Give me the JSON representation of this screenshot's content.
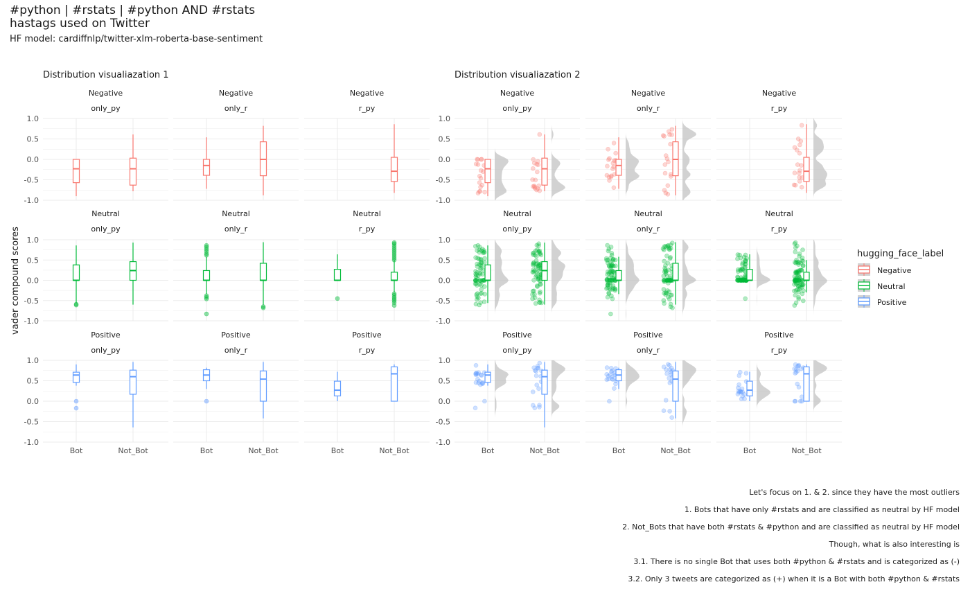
{
  "title_line1": "#python | #rstats | #python AND #rstats",
  "title_line2": "hastags used on Twitter",
  "subtitle": "HF model: cardiffnlp/twitter-xlm-roberta-base-sentiment",
  "ylabel": "vader compound scores",
  "caption": [
    "Let's focus on 1. & 2. since they have the most outliers",
    "1. Bots that have only #rstats and are classified as neutral by HF model",
    "2. Not_Bots that have both #rstats & #python and are classified as neutral by HF model",
    "Though, what is also interesting is",
    "3.1. There is no single Bot that uses both #python & #rstats and is categorized as (-)",
    "3.2. Only 3 tweets are categorized as (+) when it is a Bot with both #python & #rstats"
  ],
  "colors": {
    "Negative": "#F8766D",
    "Neutral": "#00BA38",
    "Positive": "#619CFF",
    "density": "#bfbfbf",
    "grid": "#ebebeb"
  },
  "chart_data": [
    {
      "type": "boxplot",
      "title": "Distribution visualiazation 1",
      "layers": [
        "box",
        "outliers"
      ],
      "facet_rows": [
        "Negative",
        "Neutral",
        "Positive"
      ],
      "facet_cols": [
        "only_py",
        "only_r",
        "r_py"
      ],
      "categories": [
        "Bot",
        "Not_Bot"
      ],
      "ylim": [
        -1,
        1
      ],
      "yticks": [
        "1.0",
        "0.5",
        "0.0",
        "-0.5",
        "-1.0"
      ],
      "ylabel": "vader compound scores"
    },
    {
      "type": "boxplot",
      "title": "Distribution visualiazation 2",
      "layers": [
        "jitter_points",
        "box",
        "half_density"
      ],
      "facet_rows": [
        "Negative",
        "Neutral",
        "Positive"
      ],
      "facet_cols": [
        "only_py",
        "only_r",
        "r_py"
      ],
      "categories": [
        "Bot",
        "Not_Bot"
      ],
      "ylim": [
        -1,
        1
      ],
      "yticks": [
        "1.0",
        "0.5",
        "0.0",
        "-0.5",
        "-1.0"
      ]
    }
  ],
  "legend": {
    "title": "hugging_face_label",
    "items": [
      "Negative",
      "Neutral",
      "Positive"
    ],
    "position": "right"
  },
  "boxes": {
    "Negative": {
      "only_py": {
        "Bot": {
          "min": -0.9,
          "q1": -0.57,
          "med": -0.23,
          "q3": 0.0,
          "max": 0.0,
          "outliers": []
        },
        "Not_Bot": {
          "min": -0.78,
          "q1": -0.63,
          "med": -0.23,
          "q3": 0.03,
          "max": 0.61,
          "outliers": []
        }
      },
      "only_r": {
        "Bot": {
          "min": -0.72,
          "q1": -0.39,
          "med": -0.15,
          "q3": 0.0,
          "max": 0.54,
          "outliers": []
        },
        "Not_Bot": {
          "min": -0.88,
          "q1": -0.4,
          "med": 0.0,
          "q3": 0.43,
          "max": 0.82,
          "outliers": []
        }
      },
      "r_py": {
        "Bot": null,
        "Not_Bot": {
          "min": -0.82,
          "q1": -0.54,
          "med": -0.29,
          "q3": 0.05,
          "max": 0.86,
          "outliers": []
        }
      }
    },
    "Neutral": {
      "only_py": {
        "Bot": {
          "min": -0.56,
          "q1": 0.0,
          "med": 0.0,
          "q3": 0.38,
          "max": 0.86,
          "outliers": [
            -0.59,
            -0.61
          ]
        },
        "Not_Bot": {
          "min": -0.6,
          "q1": 0.0,
          "med": 0.24,
          "q3": 0.46,
          "max": 0.93,
          "outliers": []
        }
      },
      "only_r": {
        "Bot": {
          "min": -0.34,
          "q1": 0.0,
          "med": 0.0,
          "q3": 0.24,
          "max": 0.58,
          "outliers": [
            0.62,
            0.66,
            0.72,
            0.77,
            0.82,
            0.86,
            -0.38,
            -0.42,
            -0.46,
            -0.83
          ]
        },
        "Not_Bot": {
          "min": -0.6,
          "q1": 0.0,
          "med": 0.0,
          "q3": 0.42,
          "max": 0.94,
          "outliers": [
            -0.65,
            -0.68
          ]
        }
      },
      "r_py": {
        "Bot": {
          "min": 0.0,
          "q1": 0.0,
          "med": 0.0,
          "q3": 0.27,
          "max": 0.64,
          "outliers": [
            -0.45
          ]
        },
        "Not_Bot": {
          "min": -0.3,
          "q1": 0.0,
          "med": 0.0,
          "q3": 0.2,
          "max": 0.5,
          "outliers": [
            0.5,
            0.55,
            0.6,
            0.65,
            0.7,
            0.75,
            0.8,
            0.85,
            0.9,
            0.93,
            -0.33,
            -0.37,
            -0.42,
            -0.46,
            -0.5,
            -0.55,
            -0.62
          ]
        }
      }
    },
    "Positive": {
      "only_py": {
        "Bot": {
          "min": 0.38,
          "q1": 0.46,
          "med": 0.64,
          "q3": 0.71,
          "max": 0.9,
          "outliers": [
            0.0,
            -0.17
          ]
        },
        "Not_Bot": {
          "min": -0.64,
          "q1": 0.17,
          "med": 0.6,
          "q3": 0.76,
          "max": 0.96,
          "outliers": []
        }
      },
      "only_r": {
        "Bot": {
          "min": 0.3,
          "q1": 0.5,
          "med": 0.64,
          "q3": 0.77,
          "max": 0.82,
          "outliers": [
            0.0
          ]
        },
        "Not_Bot": {
          "min": -0.42,
          "q1": 0.0,
          "med": 0.54,
          "q3": 0.74,
          "max": 0.96,
          "outliers": []
        }
      },
      "r_py": {
        "Bot": {
          "min": 0.0,
          "q1": 0.13,
          "med": 0.27,
          "q3": 0.49,
          "max": 0.72,
          "outliers": []
        },
        "Not_Bot": {
          "min": 0.0,
          "q1": 0.0,
          "med": 0.67,
          "q3": 0.84,
          "max": 0.9,
          "outliers": []
        }
      }
    }
  }
}
